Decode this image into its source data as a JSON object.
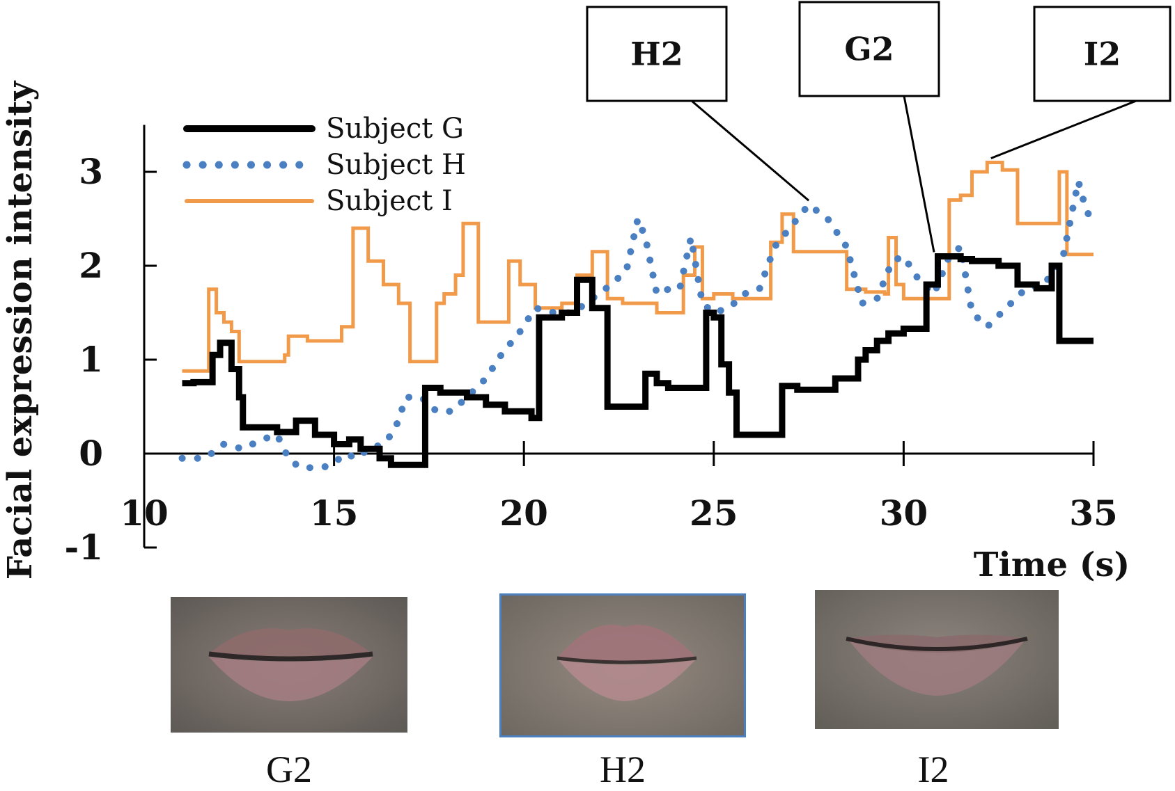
{
  "chart_data": {
    "type": "line",
    "xlabel": "Time (s)",
    "ylabel": "Facial expression intensity",
    "xlim": [
      10,
      35
    ],
    "ylim": [
      -1,
      3.5
    ],
    "xticks": [
      10,
      15,
      20,
      25,
      30,
      35
    ],
    "yticks": [
      -1,
      0,
      1,
      2,
      3
    ],
    "legend_position": "top-left",
    "series": [
      {
        "name": "Subject G",
        "style": "solid-thick",
        "color": "#000000",
        "x": [
          11,
          11.3,
          11.8,
          12.0,
          12.3,
          12.5,
          12.6,
          13.5,
          14.0,
          14.5,
          15.0,
          15.4,
          15.7,
          16.0,
          16.2,
          16.5,
          17.2,
          17.4,
          17.8,
          18.5,
          19.0,
          19.5,
          20.2,
          20.4,
          21.0,
          21.4,
          21.8,
          22.2,
          23.0,
          23.2,
          23.5,
          23.8,
          24.2,
          24.6,
          24.8,
          25.0,
          25.2,
          25.4,
          25.6,
          26.0,
          26.5,
          26.8,
          27.2,
          27.5,
          28.2,
          28.5,
          28.8,
          29.0,
          29.3,
          29.6,
          30.0,
          30.3,
          30.6,
          30.9,
          31.2,
          31.5,
          31.8,
          32.5,
          33.0,
          33.5,
          33.9,
          34.1,
          34.3,
          34.5,
          35.0
        ],
        "y": [
          0.75,
          0.76,
          1.05,
          1.18,
          0.9,
          0.6,
          0.28,
          0.23,
          0.35,
          0.2,
          0.1,
          0.15,
          0.05,
          0.05,
          -0.05,
          -0.12,
          -0.12,
          0.7,
          0.65,
          0.6,
          0.52,
          0.45,
          0.38,
          1.45,
          1.5,
          1.85,
          1.55,
          0.5,
          0.5,
          0.85,
          0.75,
          0.7,
          0.7,
          0.7,
          1.5,
          1.45,
          0.95,
          0.65,
          0.2,
          0.2,
          0.2,
          0.72,
          0.68,
          0.68,
          0.8,
          0.8,
          1.0,
          1.1,
          1.2,
          1.28,
          1.33,
          1.33,
          1.8,
          2.1,
          2.1,
          2.07,
          2.05,
          2.0,
          1.8,
          1.76,
          2.0,
          1.2,
          1.2,
          1.2,
          1.2
        ]
      },
      {
        "name": "Subject H",
        "style": "dotted",
        "color": "#4a7fc1",
        "x": [
          11.0,
          11.6,
          12.1,
          12.6,
          13.1,
          13.5,
          13.8,
          14.1,
          14.4,
          14.7,
          15.0,
          15.3,
          15.6,
          15.9,
          16.3,
          16.6,
          16.9,
          17.3,
          17.7,
          18.1,
          18.5,
          19.0,
          19.4,
          19.9,
          20.3,
          20.8,
          21.3,
          21.8,
          22.3,
          22.7,
          23.0,
          23.2,
          23.5,
          23.8,
          24.1,
          24.4,
          24.7,
          25.0,
          25.4,
          25.8,
          26.2,
          26.6,
          27.0,
          27.5,
          28.0,
          28.5,
          28.9,
          29.3,
          29.7,
          30.0,
          30.4,
          30.8,
          31.2,
          31.5,
          31.8,
          32.2,
          32.7,
          33.2,
          33.7,
          34.2,
          34.6,
          34.8,
          35.0
        ],
        "y": [
          -0.05,
          -0.05,
          0.1,
          0.05,
          0.15,
          0.2,
          -0.05,
          -0.15,
          -0.15,
          -0.15,
          -0.1,
          0.0,
          -0.05,
          0.05,
          0.1,
          0.25,
          0.6,
          0.6,
          0.45,
          0.45,
          0.6,
          0.8,
          1.05,
          1.3,
          1.55,
          1.5,
          1.5,
          1.65,
          1.8,
          1.95,
          2.5,
          2.3,
          1.7,
          1.75,
          1.75,
          2.3,
          1.6,
          1.5,
          1.55,
          1.7,
          1.75,
          2.2,
          2.4,
          2.65,
          2.5,
          2.2,
          1.6,
          1.65,
          2.05,
          2.1,
          1.85,
          1.7,
          2.1,
          2.2,
          1.5,
          1.35,
          1.55,
          1.75,
          1.8,
          2.1,
          2.9,
          2.6,
          2.45
        ]
      },
      {
        "name": "Subject I",
        "style": "solid",
        "color": "#f09a4a",
        "x": [
          11.0,
          11.6,
          11.7,
          11.9,
          12.1,
          12.3,
          12.5,
          13.5,
          13.7,
          13.8,
          14.3,
          14.8,
          15.2,
          15.5,
          15.9,
          16.3,
          16.7,
          17.0,
          17.4,
          17.7,
          17.9,
          18.2,
          18.4,
          18.8,
          19.0,
          19.5,
          19.6,
          19.9,
          20.3,
          21.0,
          21.4,
          21.8,
          22.2,
          22.6,
          23.0,
          23.5,
          24.0,
          24.2,
          24.5,
          24.7,
          25.0,
          25.5,
          26.0,
          26.5,
          26.8,
          27.1,
          27.5,
          28.0,
          28.5,
          29.0,
          29.5,
          29.6,
          29.8,
          30.0,
          30.5,
          31.0,
          31.2,
          31.5,
          31.8,
          32.2,
          32.6,
          33.0,
          33.5,
          34.0,
          34.1,
          34.3,
          35.0
        ],
        "y": [
          0.88,
          0.88,
          1.75,
          1.5,
          1.4,
          1.3,
          0.98,
          0.98,
          1.05,
          1.25,
          1.2,
          1.2,
          1.35,
          2.4,
          2.05,
          1.8,
          1.6,
          0.98,
          0.98,
          1.6,
          1.7,
          1.9,
          2.45,
          1.4,
          1.4,
          1.4,
          2.05,
          1.8,
          1.55,
          1.6,
          1.9,
          2.15,
          1.65,
          1.6,
          1.6,
          1.5,
          1.5,
          1.9,
          2.2,
          1.65,
          1.7,
          1.65,
          1.65,
          2.25,
          2.55,
          2.15,
          2.15,
          2.15,
          1.75,
          1.72,
          1.7,
          2.3,
          1.8,
          1.65,
          1.65,
          1.65,
          2.7,
          2.75,
          3.0,
          3.1,
          3.02,
          2.45,
          2.45,
          2.45,
          3.0,
          2.12,
          2.12
        ]
      }
    ],
    "callouts": [
      {
        "label": "H2",
        "series": "Subject H",
        "x": 27.5,
        "y": 2.65
      },
      {
        "label": "G2",
        "series": "Subject G",
        "x": 30.8,
        "y": 2.1
      },
      {
        "label": "I2",
        "series": "Subject I",
        "x": 32.3,
        "y": 3.1
      }
    ]
  },
  "thumbnails": [
    {
      "caption": "G2",
      "expression": "neutral-lips",
      "border_color": "#888888"
    },
    {
      "caption": "H2",
      "expression": "pressed-lips",
      "border_color": "#4a7fc1"
    },
    {
      "caption": "I2",
      "expression": "smiling-lips",
      "border_color": "#888888"
    }
  ]
}
